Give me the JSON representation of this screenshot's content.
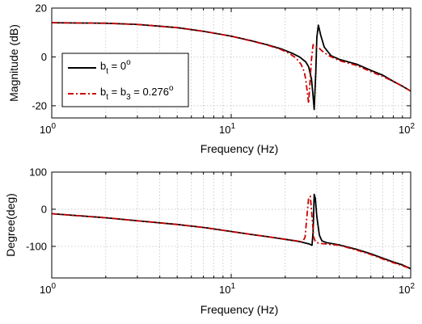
{
  "chart_data": [
    {
      "type": "line",
      "name": "magnitude",
      "xlabel": "Frequency (Hz)",
      "ylabel": "Magnitude (dB)",
      "xscale": "log",
      "xlim": [
        1,
        100
      ],
      "ylim": [
        -25,
        20
      ],
      "xticks": [
        1,
        10,
        100
      ],
      "xtick_labels": [
        {
          "base": "10",
          "exp": "0"
        },
        {
          "base": "10",
          "exp": "1"
        },
        {
          "base": "10",
          "exp": "2"
        }
      ],
      "yticks": [
        -20,
        0,
        20
      ],
      "ytick_labels": [
        "-20",
        "0",
        "20"
      ],
      "grid": true,
      "legend": {
        "placement": "inside-left",
        "entries": [
          {
            "prefix": "b",
            "sub": "t",
            "mid": " = 0",
            "sub2": "",
            "tail": "",
            "sup": "o"
          },
          {
            "prefix": "b",
            "sub": "t",
            "mid": " = b",
            "sub2": "3",
            "tail": " = 0.276",
            "sup": "o"
          }
        ]
      },
      "series": [
        {
          "legend_index": 0,
          "color": "#000000",
          "style": "solid",
          "x": [
            1,
            2,
            3,
            5,
            7,
            10,
            13,
            16,
            19,
            22,
            24,
            26,
            27,
            28,
            28.5,
            29,
            29.6,
            30,
            30.6,
            31.5,
            33,
            36,
            40,
            50,
            60,
            70,
            80,
            90,
            100
          ],
          "y": [
            14,
            13.8,
            13.3,
            12,
            10.5,
            8.5,
            6.6,
            4.9,
            3.3,
            1.4,
            0,
            -2,
            -4,
            -9,
            -15,
            -21.5,
            -6,
            8,
            13,
            9,
            4,
            0.5,
            -1,
            -3,
            -5.5,
            -7.5,
            -10,
            -12,
            -14
          ]
        },
        {
          "legend_index": 1,
          "color": "#cc0000",
          "style": "dashdot",
          "x": [
            1,
            2,
            3,
            5,
            7,
            10,
            13,
            16,
            19,
            21,
            23,
            24.5,
            25.5,
            26,
            26.5,
            27,
            27.5,
            28,
            28.6,
            29.3,
            30.5,
            32,
            35,
            40,
            50,
            60,
            70,
            80,
            90,
            100
          ],
          "y": [
            14,
            13.8,
            13.3,
            12,
            10.5,
            8.5,
            6.5,
            4.8,
            3,
            1.5,
            -0.5,
            -3,
            -6,
            -9,
            -14,
            -19,
            -10,
            -1,
            5,
            4,
            4,
            2.5,
            0.5,
            -1.5,
            -3.5,
            -6,
            -8,
            -10,
            -12,
            -14
          ]
        }
      ]
    },
    {
      "type": "line",
      "name": "phase",
      "xlabel": "Frequency (Hz)",
      "ylabel": "Degree(deg)",
      "xscale": "log",
      "xlim": [
        1,
        100
      ],
      "ylim": [
        -185,
        100
      ],
      "xticks": [
        1,
        10,
        100
      ],
      "xtick_labels": [
        {
          "base": "10",
          "exp": "0"
        },
        {
          "base": "10",
          "exp": "1"
        },
        {
          "base": "10",
          "exp": "2"
        }
      ],
      "yticks": [
        -100,
        0,
        100
      ],
      "ytick_labels": [
        "-100",
        "0",
        "100"
      ],
      "grid": true,
      "series": [
        {
          "legend_index": 0,
          "color": "#000000",
          "style": "solid",
          "x": [
            1,
            2,
            3,
            5,
            7,
            10,
            13,
            16,
            20,
            24,
            27,
            28.2,
            28.6,
            29,
            29.4,
            30,
            31,
            32,
            34,
            37,
            40,
            50,
            60,
            70,
            80,
            90,
            100
          ],
          "y": [
            -12,
            -23,
            -31,
            -41,
            -49,
            -60,
            -68,
            -74,
            -81,
            -87,
            -93,
            -97,
            -60,
            40,
            30,
            -20,
            -70,
            -85,
            -90,
            -93,
            -96,
            -108,
            -120,
            -132,
            -142,
            -150,
            -160
          ]
        },
        {
          "legend_index": 1,
          "color": "#cc0000",
          "style": "dashdot",
          "x": [
            1,
            2,
            3,
            5,
            7,
            10,
            13,
            16,
            20,
            23,
            25,
            25.8,
            26.4,
            27,
            27.6,
            28.2,
            28.8,
            29.5,
            31,
            33,
            36,
            40,
            50,
            60,
            70,
            80,
            90,
            100
          ],
          "y": [
            -12,
            -23,
            -31,
            -41,
            -49,
            -60,
            -68,
            -74,
            -81,
            -85,
            -88,
            -75,
            -20,
            30,
            35,
            -20,
            -75,
            -88,
            -92,
            -93,
            -95,
            -97,
            -110,
            -122,
            -134,
            -144,
            -152,
            -160
          ]
        }
      ]
    }
  ]
}
